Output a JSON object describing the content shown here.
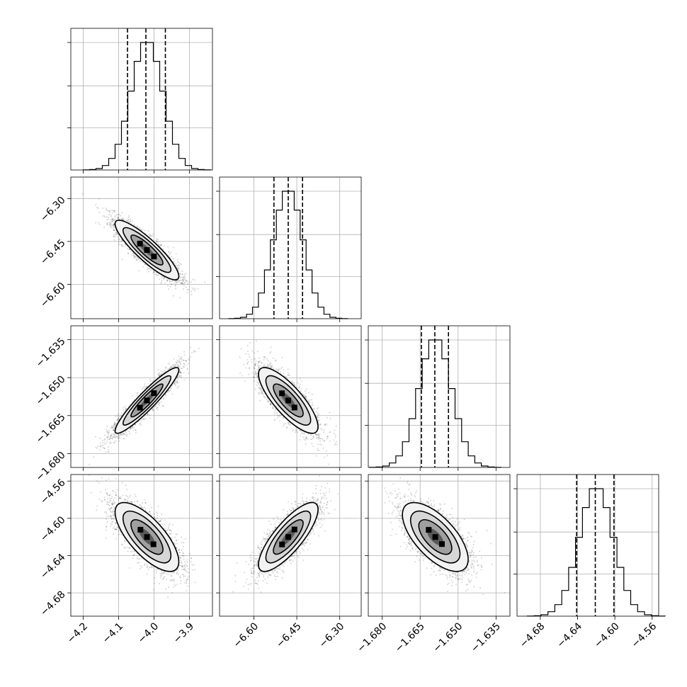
{
  "chart_data": {
    "type": "corner",
    "parameters": [
      {
        "mean": -4.02,
        "sd": 0.045,
        "range": [
          -4.235,
          -3.835
        ],
        "ticks": [
          -4.2,
          -4.1,
          -4.0,
          -3.9
        ],
        "tick_labels": [
          "−4.2",
          "−4.1",
          "−4.0",
          "−3.9"
        ],
        "quantiles": [
          -4.075,
          -4.023,
          -3.968
        ]
      },
      {
        "mean": -6.48,
        "sd": 0.052,
        "range": [
          -6.72,
          -6.225
        ],
        "ticks": [
          -6.6,
          -6.45,
          -6.3
        ],
        "tick_labels": [
          "−6.60",
          "−6.45",
          "−6.30"
        ],
        "quantiles": [
          -6.53,
          -6.48,
          -6.43
        ]
      },
      {
        "mean": -1.659,
        "sd": 0.0065,
        "range": [
          -1.6855,
          -1.6295
        ],
        "ticks": [
          -1.68,
          -1.665,
          -1.65,
          -1.635
        ],
        "tick_labels": [
          "−1.680",
          "−1.665",
          "−1.650",
          "−1.635"
        ],
        "quantiles": [
          -1.6645,
          -1.6592,
          -1.6538
        ]
      },
      {
        "mean": -4.62,
        "sd": 0.0185,
        "range": [
          -4.705,
          -4.553
        ],
        "ticks": [
          -4.68,
          -4.64,
          -4.6,
          -4.56
        ],
        "tick_labels": [
          "−4.68",
          "−4.64",
          "−4.60",
          "−4.56"
        ],
        "quantiles": [
          -4.641,
          -4.621,
          -4.601
        ]
      }
    ],
    "correlations": [
      [
        1.0,
        -0.88,
        0.93,
        -0.72
      ],
      [
        -0.88,
        1.0,
        -0.8,
        0.8
      ],
      [
        0.93,
        -0.8,
        1.0,
        -0.65
      ],
      [
        -0.72,
        0.8,
        -0.65,
        1.0
      ]
    ],
    "histogram_bins": 20,
    "samples_per_panel": 3000,
    "contour_levels_sigma": [
      0.5,
      1.0,
      1.5,
      2.0
    ],
    "grid": true
  }
}
